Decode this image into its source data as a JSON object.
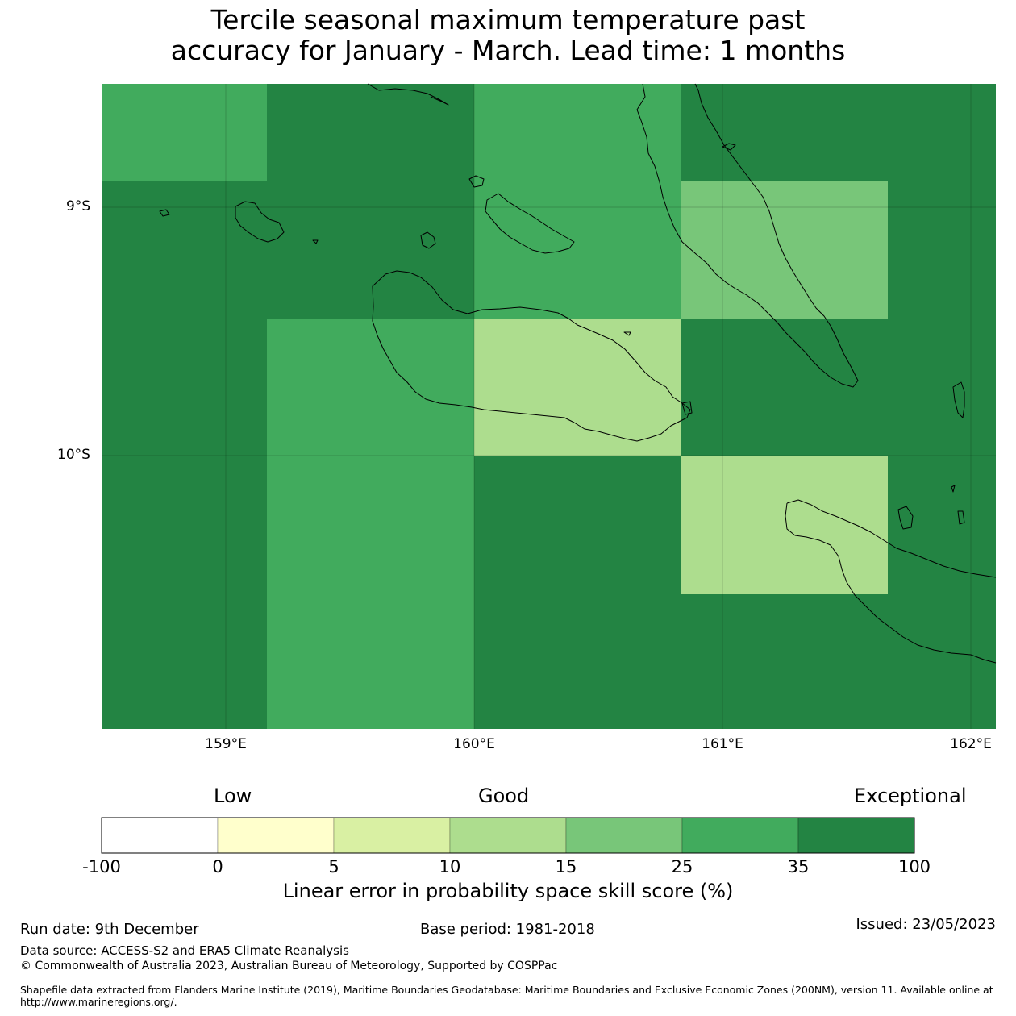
{
  "title": {
    "line1": "Tercile seasonal maximum temperature past",
    "line2": "accuracy for January - March. Lead time: 1 months"
  },
  "map": {
    "lat_labels": [
      "9°S",
      "10°S"
    ],
    "lon_labels": [
      "159°E",
      "160°E",
      "161°E",
      "162°E"
    ],
    "skill_classes": [
      {
        "range": "-100 to 0",
        "color": "#ffffff"
      },
      {
        "range": "0 to 5",
        "color": "#ffffcc"
      },
      {
        "range": "5 to 10",
        "color": "#d9f0a3"
      },
      {
        "range": "10 to 15",
        "color": "#addd8e"
      },
      {
        "range": "15 to 25",
        "color": "#78c679"
      },
      {
        "range": "25 to 35",
        "color": "#41ab5d"
      },
      {
        "range": "35 to 100",
        "color": "#238443"
      }
    ]
  },
  "colorbar": {
    "categories": [
      "Low",
      "Good",
      "Exceptional"
    ],
    "ticks": [
      "-100",
      "0",
      "5",
      "10",
      "15",
      "25",
      "35",
      "100"
    ],
    "colors": [
      "#ffffff",
      "#ffffcc",
      "#d9f0a3",
      "#addd8e",
      "#78c679",
      "#41ab5d",
      "#238443"
    ],
    "label": "Linear error in probability space skill score (%)"
  },
  "footer": {
    "run_date": "Run date: 9th December",
    "base_period": "Base period: 1981-2018",
    "issued": "Issued: 23/05/2023",
    "data_source": "Data source: ACCESS-S2 and ERA5 Climate Reanalysis",
    "copyright": "© Commonwealth of Australia 2023, Australian Bureau of Meteorology, Supported by COSPPac",
    "shapefile_line1": "Shapefile data extracted from Flanders Marine Institute (2019), Maritime Boundaries Geodatabase: Maritime Boundaries and Exclusive Economic Zones (200NM), version 11. Available online at",
    "shapefile_line2": "http://www.marineregions.org/."
  }
}
